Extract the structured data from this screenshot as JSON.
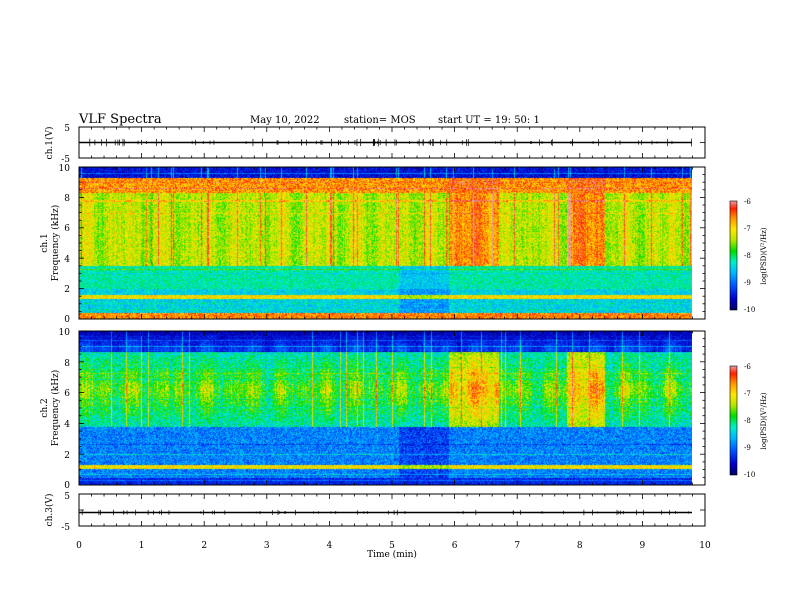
{
  "header": {
    "title": "VLF Spectra",
    "date": "May 10, 2022",
    "station": "station= MOS",
    "start": "start  UT =  19: 50: 1"
  },
  "colors": {
    "colormap": [
      "#000060",
      "#0000c8",
      "#0050ff",
      "#00b4ff",
      "#00f0c8",
      "#00dc00",
      "#b4e600",
      "#ffe600",
      "#ff9600",
      "#ff2000",
      "#e6a0a0"
    ]
  },
  "chart_data": [
    {
      "type": "line",
      "name": "ch1-waveform",
      "ylabel": "ch.1(V)",
      "ylim": [
        -5,
        5
      ],
      "yticks": [
        5,
        "",
        -5
      ],
      "xlim": [
        0,
        10
      ],
      "series": [
        {
          "values": [
            0,
            0
          ]
        }
      ]
    },
    {
      "type": "heatmap",
      "name": "ch1-spectrogram",
      "ylabel": "Frequency  (kHz)",
      "channel": "ch.1",
      "ylim": [
        0,
        10
      ],
      "yticks": [
        "0",
        "2",
        "4",
        "6",
        "8",
        "10"
      ],
      "xlim": [
        0,
        10
      ],
      "colorbar": {
        "label": "log(PSD)(V²/Hz)",
        "ticks": [
          "-6",
          "-7",
          "-8",
          "-9",
          "-10"
        ],
        "range": [
          -10,
          -6
        ]
      }
    },
    {
      "type": "heatmap",
      "name": "ch2-spectrogram",
      "ylabel": "Frequency  (kHz)",
      "channel": "ch.2",
      "ylim": [
        0,
        10
      ],
      "yticks": [
        "0",
        "2",
        "4",
        "6",
        "8",
        "10"
      ],
      "xlim": [
        0,
        10
      ],
      "colorbar": {
        "label": "log(PSD)(V²/Hz)",
        "ticks": [
          "-6",
          "-7",
          "-8",
          "-9",
          "-10"
        ],
        "range": [
          -10,
          -6
        ]
      }
    },
    {
      "type": "line",
      "name": "ch3-waveform",
      "ylabel": "ch.3(V)",
      "ylim": [
        -5,
        5
      ],
      "yticks": [
        5,
        "",
        -5
      ],
      "xlim": [
        0,
        10
      ],
      "xlabel": "Time  (min)",
      "xticks": [
        "0",
        "1",
        "2",
        "3",
        "4",
        "5",
        "6",
        "7",
        "8",
        "9",
        "10"
      ],
      "series": [
        {
          "values": [
            0,
            0
          ]
        }
      ]
    }
  ]
}
